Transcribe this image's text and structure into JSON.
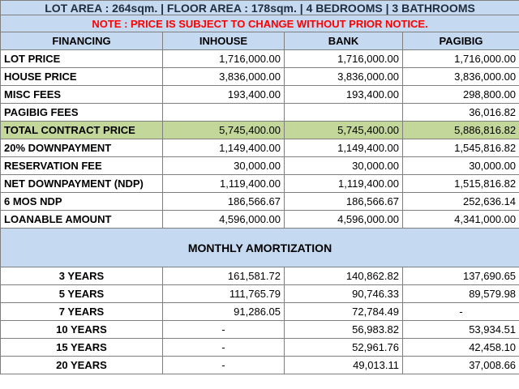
{
  "banner": "LOT AREA : 264sqm. | FLOOR AREA : 178sqm. | 4 BEDROOMS | 3 BATHROOMS",
  "note": "NOTE : PRICE IS SUBJECT TO CHANGE WITHOUT PRIOR NOTICE.",
  "headers": [
    "FINANCING",
    "INHOUSE",
    "BANK",
    "PAGIBIG"
  ],
  "rows": [
    {
      "label": "LOT PRICE",
      "values": [
        "1,716,000.00",
        "1,716,000.00",
        "1,716,000.00"
      ]
    },
    {
      "label": "HOUSE PRICE",
      "values": [
        "3,836,000.00",
        "3,836,000.00",
        "3,836,000.00"
      ]
    },
    {
      "label": "MISC FEES",
      "values": [
        "193,400.00",
        "193,400.00",
        "298,800.00"
      ]
    },
    {
      "label": "PAGIBIG FEES",
      "values": [
        "",
        "",
        "36,016.82"
      ]
    },
    {
      "label": "TOTAL CONTRACT PRICE",
      "values": [
        "5,745,400.00",
        "5,745,400.00",
        "5,886,816.82"
      ],
      "highlight": true
    },
    {
      "label": "20% DOWNPAYMENT",
      "values": [
        "1,149,400.00",
        "1,149,400.00",
        "1,545,816.82"
      ]
    },
    {
      "label": "RESERVATION FEE",
      "values": [
        "30,000.00",
        "30,000.00",
        "30,000.00"
      ]
    },
    {
      "label": "NET DOWNPAYMENT (NDP)",
      "values": [
        "1,119,400.00",
        "1,119,400.00",
        "1,515,816.82"
      ]
    },
    {
      "label": "6 MOS NDP",
      "values": [
        "186,566.67",
        "186,566.67",
        "252,636.14"
      ]
    },
    {
      "label": "LOANABLE AMOUNT",
      "values": [
        "4,596,000.00",
        "4,596,000.00",
        "4,341,000.00"
      ]
    }
  ],
  "section_title": "MONTHLY AMORTIZATION",
  "amortization": [
    {
      "label": "3 YEARS",
      "values": [
        "161,581.72",
        "140,862.82",
        "137,690.65"
      ]
    },
    {
      "label": "5 YEARS",
      "values": [
        "111,765.79",
        "90,746.33",
        "89,579.98"
      ]
    },
    {
      "label": "7 YEARS",
      "values": [
        "91,286.05",
        "72,784.49",
        "-"
      ]
    },
    {
      "label": "10 YEARS",
      "values": [
        "-",
        "56,983.82",
        "53,934.51"
      ]
    },
    {
      "label": "15 YEARS",
      "values": [
        "-",
        "52,961.76",
        "42,458.10"
      ]
    },
    {
      "label": "20 YEARS",
      "values": [
        "-",
        "49,013.11",
        "37,008.66"
      ]
    }
  ]
}
